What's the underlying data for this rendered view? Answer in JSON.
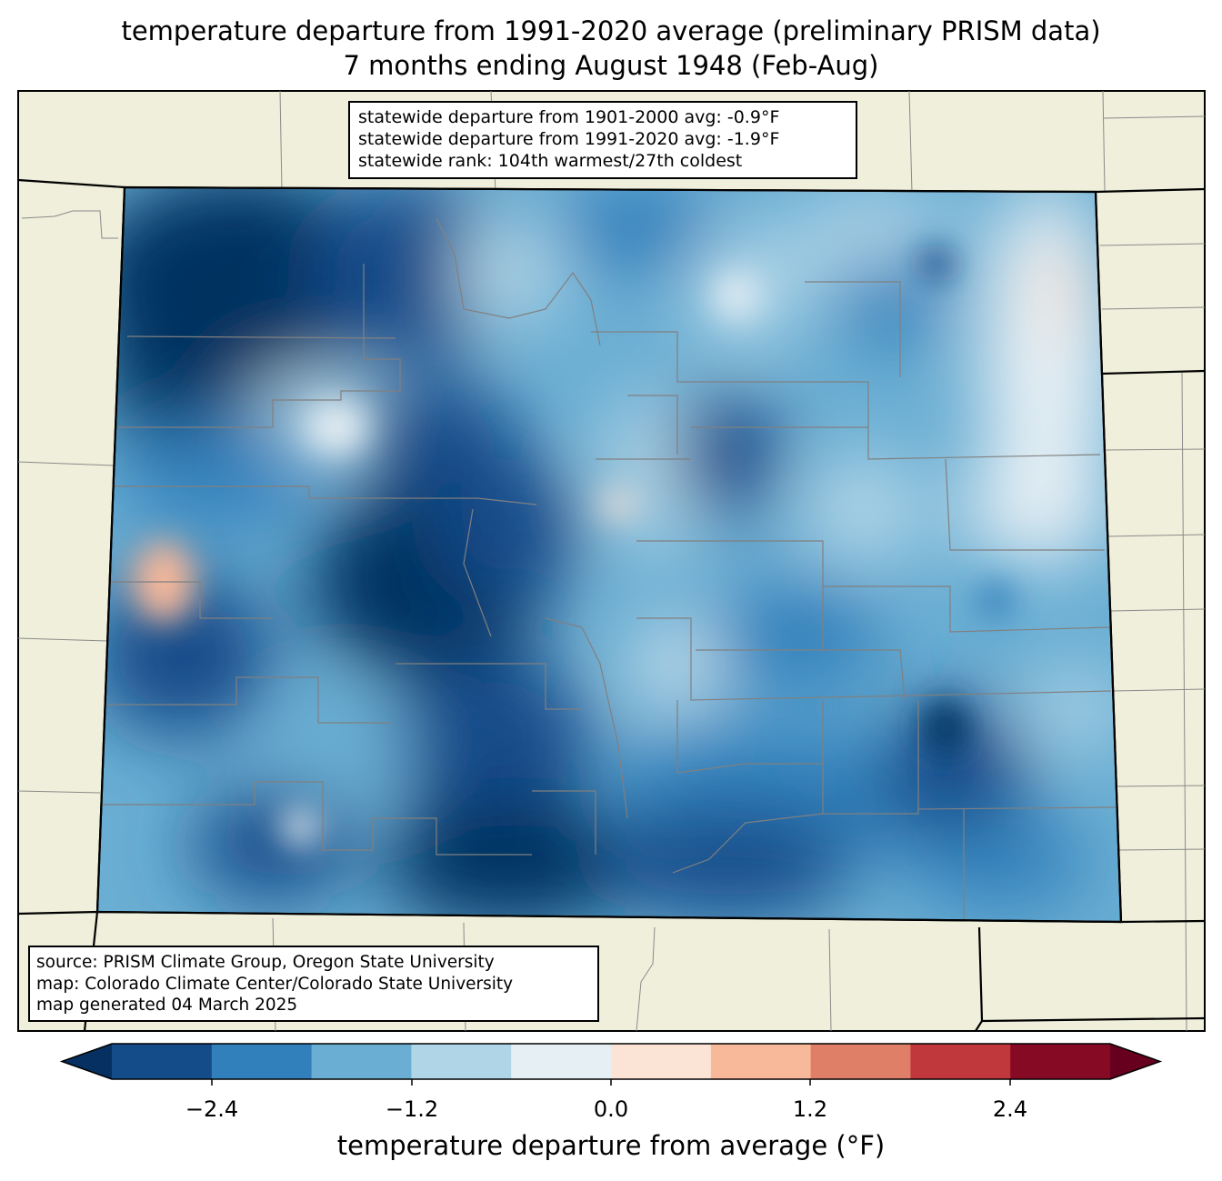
{
  "title": {
    "line1": "temperature departure from 1991-2020 average (preliminary PRISM data)",
    "line2": "7 months ending August 1948 (Feb-Aug)"
  },
  "stats_box": {
    "line1": "statewide departure from 1901-2000 avg: -0.9°F",
    "line2": "statewide departure from 1991-2020 avg: -1.9°F",
    "line3": "statewide rank: 104th warmest/27th coldest"
  },
  "source_box": {
    "line1": "source: PRISM Climate Group, Oregon State University",
    "line2": "map: Colorado Climate Center/Colorado State University",
    "line3": "map generated 04 March 2025"
  },
  "colorbar": {
    "label": "temperature departure from average (°F)",
    "ticks": [
      "−2.4",
      "−1.2",
      "0.0",
      "1.2",
      "2.4"
    ],
    "levels": [
      -3.0,
      -2.4,
      -1.8,
      -1.2,
      -0.6,
      0.0,
      0.6,
      1.2,
      1.8,
      2.4,
      3.0
    ],
    "colors": [
      "#053061",
      "#134c89",
      "#3180bb",
      "#6aaed3",
      "#b0d5e7",
      "#e6eff4",
      "#fbe4d6",
      "#f8b89a",
      "#e07f68",
      "#c0373c",
      "#870a24",
      "#67001f"
    ]
  },
  "map_colors": {
    "land": "#efefdc",
    "state_border": "#000000",
    "county_border": "#808080"
  }
}
